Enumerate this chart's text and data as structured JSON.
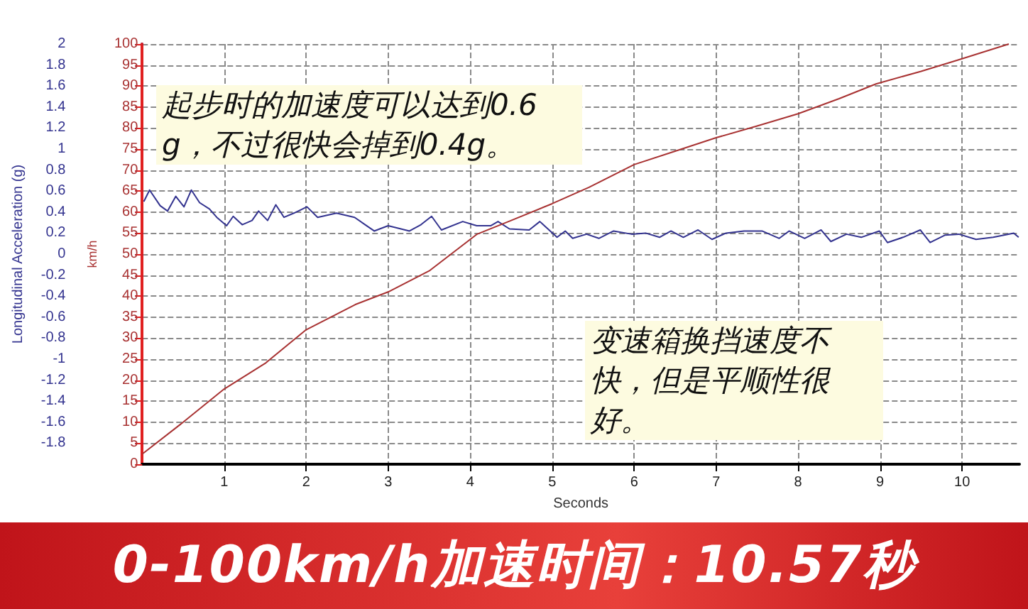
{
  "chart_data": {
    "type": "line",
    "title": "0-100km/h加速时间：10.57秒",
    "xlabel": "Seconds",
    "ylabel": "Longitudinal Acceleration (g)",
    "y2label": "km/h",
    "annotations": [
      "起步时的加速度可以达到0.6g，不过很快会掉到0.4g。",
      "变速箱换挡速度不快，但是平顺性很好。"
    ],
    "xlim": [
      0,
      10.7
    ],
    "xticks": [
      1,
      2,
      3,
      4,
      5,
      6,
      7,
      8,
      9,
      10
    ],
    "ylim": [
      -2,
      2
    ],
    "yticks": [
      -1.8,
      -1.6,
      -1.4,
      -1.2,
      -1,
      -0.8,
      -0.6,
      -0.4,
      -0.2,
      0,
      0.2,
      0.4,
      0.6,
      0.8,
      1,
      1.2,
      1.4,
      1.6,
      1.8,
      2
    ],
    "y2lim": [
      0,
      100
    ],
    "y2ticks": [
      0,
      5,
      10,
      15,
      20,
      25,
      30,
      35,
      40,
      45,
      50,
      55,
      60,
      65,
      70,
      75,
      80,
      85,
      90,
      95,
      100
    ],
    "grid": true,
    "marker": "none",
    "series": [
      {
        "color": "#33338f",
        "x": [
          0.02,
          0.09,
          0.22,
          0.31,
          0.41,
          0.51,
          0.6,
          0.7,
          0.82,
          0.91,
          1.03,
          1.11,
          1.22,
          1.34,
          1.42,
          1.53,
          1.63,
          1.73,
          1.85,
          2.01,
          2.14,
          2.37,
          2.59,
          2.83,
          3,
          3.26,
          3.4,
          3.53,
          3.65,
          3.91,
          4.08,
          4.25,
          4.34,
          4.48,
          4.72,
          4.85,
          5.06,
          5.16,
          5.25,
          5.42,
          5.57,
          5.75,
          5.97,
          6.14,
          6.31,
          6.45,
          6.6,
          6.78,
          6.95,
          7.12,
          7.34,
          7.56,
          7.77,
          7.89,
          8.08,
          8.28,
          8.4,
          8.59,
          8.77,
          8.99,
          9.09,
          9.28,
          9.49,
          9.61,
          9.79,
          9.96,
          10.17,
          10.38,
          10.63,
          10.69
        ],
        "values": [
          0.5,
          0.61,
          0.46,
          0.41,
          0.55,
          0.45,
          0.61,
          0.49,
          0.43,
          0.35,
          0.27,
          0.36,
          0.28,
          0.32,
          0.41,
          0.32,
          0.47,
          0.35,
          0.39,
          0.45,
          0.35,
          0.39,
          0.35,
          0.22,
          0.27,
          0.22,
          0.28,
          0.36,
          0.23,
          0.31,
          0.27,
          0.27,
          0.31,
          0.24,
          0.23,
          0.31,
          0.16,
          0.22,
          0.15,
          0.19,
          0.15,
          0.22,
          0.19,
          0.2,
          0.16,
          0.22,
          0.16,
          0.23,
          0.14,
          0.2,
          0.22,
          0.22,
          0.15,
          0.22,
          0.15,
          0.23,
          0.12,
          0.19,
          0.16,
          0.22,
          0.11,
          0.16,
          0.23,
          0.11,
          0.18,
          0.19,
          0.14,
          0.16,
          0.2,
          0.16
        ]
      },
      {
        "color": "#a83232",
        "axis": "y2",
        "x": [
          0,
          0.5,
          1,
          1.5,
          2,
          2.3,
          2.6,
          3,
          3.5,
          4.08,
          4.5,
          5,
          5.45,
          6,
          6.5,
          7,
          7.5,
          8,
          8.5,
          8.95,
          9.5,
          10,
          10.57
        ],
        "values": [
          2.4,
          10,
          17.9,
          24,
          32,
          35,
          38,
          41,
          46,
          54.7,
          58,
          62,
          65.9,
          71.3,
          74.5,
          77.7,
          80.5,
          83.4,
          87,
          90.5,
          93.5,
          96.5,
          100
        ]
      }
    ]
  }
}
